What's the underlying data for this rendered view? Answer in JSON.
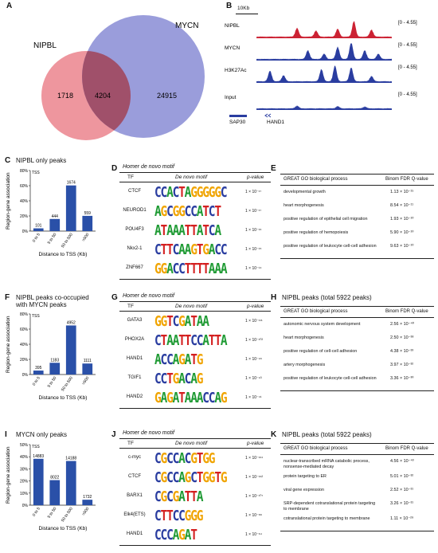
{
  "panels": {
    "A": {
      "label": "A",
      "set1_name": "NIPBL",
      "set2_name": "MYCN",
      "only1": "1718",
      "overlap": "4204",
      "only2": "24915",
      "colors": {
        "set1": "#e8808a",
        "set2": "#8c8fd6",
        "overlap": "#a0506a"
      }
    },
    "B": {
      "label": "B",
      "scale": "10Kb",
      "tracks": [
        {
          "name": "NIPBL",
          "range": "[0 - 4.55]",
          "color": "#cc2233"
        },
        {
          "name": "MYCN",
          "range": "[0 - 4.55]",
          "color": "#2a3da0"
        },
        {
          "name": "H3K27Ac",
          "range": "[0 - 4.55]",
          "color": "#2a3da0"
        },
        {
          "name": "Input",
          "range": "[0 - 4.55]",
          "color": "#2a3da0"
        }
      ],
      "genes": [
        "SAP30",
        "HAND1"
      ]
    },
    "C": {
      "label": "C",
      "title": "NIPBL only peaks"
    },
    "F": {
      "label": "F",
      "title": "NIPBL peaks co-occupied with MYCN peaks"
    },
    "I": {
      "label": "I",
      "title": "MYCN only peaks"
    },
    "D": {
      "label": "D",
      "title": "Homer de novo motif",
      "headers": [
        "TF",
        "De novo motif",
        "p-value"
      ],
      "rows": [
        {
          "tf": "CTCF",
          "motif": "CCACTAGGGGGC",
          "p": "1 × 10⁻¹⁷"
        },
        {
          "tf": "NEUROD1",
          "motif": "AGCGGCCATCT",
          "p": "1 × 10⁻¹⁷"
        },
        {
          "tf": "POU4F3",
          "motif": "ATAAATTATCA",
          "p": "1 × 10⁻¹⁶"
        },
        {
          "tf": "Nkx2-1",
          "motif": "CTTCAAGTGACC",
          "p": "1 × 10⁻¹⁵"
        },
        {
          "tf": "ZNF667",
          "motif": "GGACCTTTTAAA",
          "p": "1 × 10⁻¹⁴"
        }
      ]
    },
    "G": {
      "label": "G",
      "title": "Homer de novo motif",
      "headers": [
        "TF",
        "De novo motif",
        "p-value"
      ],
      "rows": [
        {
          "tf": "GATA3",
          "motif": "GGTCGATAA",
          "p": "1 × 10⁻¹¹¹"
        },
        {
          "tf": "PHOX2A",
          "motif": "CTAATTCCATTA",
          "p": "1 × 10⁻¹⁰²"
        },
        {
          "tf": "HAND1",
          "motif": "ACCAGATG",
          "p": "1 × 10⁻⁹⁶"
        },
        {
          "tf": "TGIF1",
          "motif": "CCTGACAG",
          "p": "1 × 10⁻⁹³"
        },
        {
          "tf": "HAND2",
          "motif": "GAGATAAACCAG",
          "p": "1 × 10⁻⁴¹"
        }
      ]
    },
    "J": {
      "label": "J",
      "title": "Homer de novo motif",
      "headers": [
        "TF",
        "De novo motif",
        "p-value"
      ],
      "rows": [
        {
          "tf": "c-myc",
          "motif": "CGCCACGTGG",
          "p": "1 × 10⁻¹⁶¹"
        },
        {
          "tf": "CTCF",
          "motif": "CGCCAGCTGGTG",
          "p": "1 × 10⁻¹⁶²"
        },
        {
          "tf": "BARX1",
          "motif": "CGCGATTA",
          "p": "1 × 10⁻¹⁰⁷"
        },
        {
          "tf": "Elk4(ETS)",
          "motif": "CTTCCGGG",
          "p": "1 × 10⁻⁸⁸"
        },
        {
          "tf": "HAND1",
          "motif": "CCCAGAT",
          "p": "1 × 10⁻⁶⁴"
        }
      ]
    },
    "E": {
      "label": "E",
      "headers": [
        "GREAT GO biological process",
        "Binom FDR Q-value"
      ],
      "rows": [
        {
          "term": "developmental growth",
          "q": "1.13 × 10⁻¹⁵"
        },
        {
          "term": "heart morphogenesis",
          "q": "8.54 × 10⁻¹¹"
        },
        {
          "term": "positive regulation of epithelial cell migration",
          "q": "1.93 × 10⁻¹⁰"
        },
        {
          "term": "positive regulation of hemopoiesis",
          "q": "5.90 × 10⁻¹⁰"
        },
        {
          "term": "positive regulation of leukocyte cell-cell adhesion",
          "q": "9.63 × 10⁻¹⁰"
        }
      ]
    },
    "H": {
      "label": "H",
      "title": "NIPBL peaks (total 5922 peaks)",
      "headers": [
        "GREAT GO biological process",
        "Binom FDR Q-value"
      ],
      "rows": [
        {
          "term": "autonomic nervous system development",
          "q": "2.56 × 10⁻⁴⁰"
        },
        {
          "term": "heart morphogenesis",
          "q": "2.50 × 10⁻³⁸"
        },
        {
          "term": "positive regulation of cell-cell adhesion",
          "q": "4.38 × 10⁻³³"
        },
        {
          "term": "artery morphogenesis",
          "q": "3.97 × 10⁻³²"
        },
        {
          "term": "positive regulation of leukocyte cell-cell adhesion",
          "q": "3.36 × 10⁻³⁰"
        }
      ]
    },
    "K": {
      "label": "K",
      "title": "NIPBL peaks (total 5922 peaks)",
      "headers": [
        "GREAT GO biological process",
        "Binom FDR Q-value"
      ],
      "rows": [
        {
          "term": "nuclear-transcribed mRNA catabolic process,\nnonsense-mediated decay",
          "q": "4.56 × 10⁻⁴³"
        },
        {
          "term": "protein targeting to ER",
          "q": "5.01 × 10⁻³²"
        },
        {
          "term": "viral gene expression",
          "q": "2.52 × 10⁻³¹"
        },
        {
          "term": "SRP-dependent cotranslational protein targeting\nto membrane",
          "q": "3.26 × 10⁻³¹"
        },
        {
          "term": "cotranslational protein targeting to membrane",
          "q": "1.11 × 10⁻²⁹"
        }
      ]
    }
  },
  "chart_data": [
    {
      "type": "bar",
      "title": "NIPBL only peaks",
      "categories": [
        "0 to 5",
        "5 to 50",
        "50 to 500",
        ">500"
      ],
      "values": [
        101,
        444,
        1674,
        559
      ],
      "value_labels": [
        "101",
        "444",
        "1674",
        "559"
      ],
      "shares_pct": [
        3.6,
        16,
        60.3,
        20.1
      ],
      "xlabel": "Distance to TSS (Kb)",
      "ylabel": "Region-gene association",
      "legend": "TSS",
      "yticks": [
        "0%",
        "20%",
        "40%",
        "60%",
        "80%"
      ],
      "ylim": [
        0,
        80
      ],
      "color": "#2a50a8"
    },
    {
      "type": "bar",
      "title": "NIPBL peaks co-occupied with MYCN peaks",
      "categories": [
        "0 to 5",
        "5 to 50",
        "50 to 500",
        ">500"
      ],
      "values": [
        395,
        1183,
        4952,
        1111
      ],
      "value_labels": [
        "395",
        "1183",
        "4952",
        "1111"
      ],
      "shares_pct": [
        5.2,
        15.5,
        64.8,
        14.5
      ],
      "xlabel": "Distance to TSS (Kb)",
      "ylabel": "Region-gene association",
      "legend": "TSS",
      "yticks": [
        "0%",
        "20%",
        "40%",
        "60%",
        "80%"
      ],
      "ylim": [
        0,
        80
      ],
      "color": "#2a50a8"
    },
    {
      "type": "bar",
      "title": "MYCN only peaks",
      "categories": [
        "0 to 5",
        "5 to 50",
        "50 to 500",
        ">500"
      ],
      "values": [
        14883,
        8022,
        14188,
        1732
      ],
      "value_labels": [
        "14883",
        "8022",
        "14188",
        "1732"
      ],
      "shares_pct": [
        38.3,
        20.7,
        36.5,
        4.5
      ],
      "xlabel": "Distance to TSS (Kb)",
      "ylabel": "Region-gene association",
      "legend": "TSS",
      "yticks": [
        "0%",
        "10%",
        "20%",
        "30%",
        "40%",
        "50%"
      ],
      "ylim": [
        0,
        50
      ],
      "color": "#2a50a8"
    }
  ]
}
